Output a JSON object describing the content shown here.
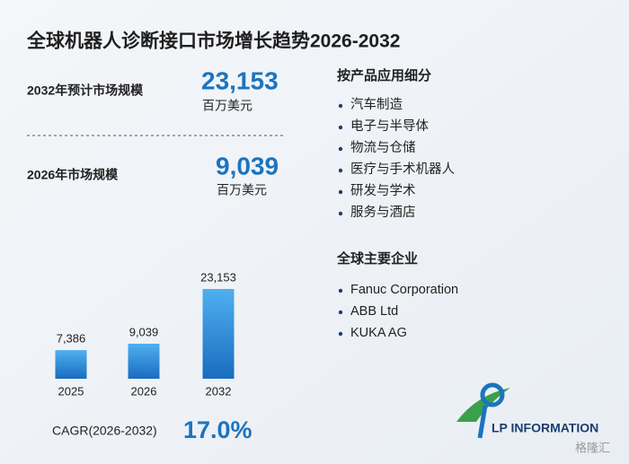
{
  "title": "全球机器人诊断接口市场增长趋势2026-2032",
  "stats": [
    {
      "label": "2032年预计市场规模",
      "value": "23,153",
      "unit": "百万美元"
    },
    {
      "label": "2026年市场规模",
      "value": "9,039",
      "unit": "百万美元"
    }
  ],
  "chart_data": {
    "type": "bar",
    "categories": [
      "2025",
      "2026",
      "2032"
    ],
    "values": [
      7386,
      9039,
      23153
    ],
    "value_labels": [
      "7,386",
      "9,039",
      "23,153"
    ],
    "color": "#2b86d6"
  },
  "cagr": {
    "label": "CAGR(2026-2032)",
    "value": "17.0%"
  },
  "segments": {
    "title": "按产品应用细分",
    "items": [
      "汽车制造",
      "电子与半导体",
      "物流与仓储",
      "医疗与手术机器人",
      "研发与学术",
      "服务与酒店"
    ]
  },
  "companies": {
    "title": "全球主要企业",
    "items": [
      "Fanuc Corporation",
      "ABB Ltd",
      "KUKA AG"
    ]
  },
  "logo": "LP INFORMATION",
  "watermark": "格隆汇"
}
